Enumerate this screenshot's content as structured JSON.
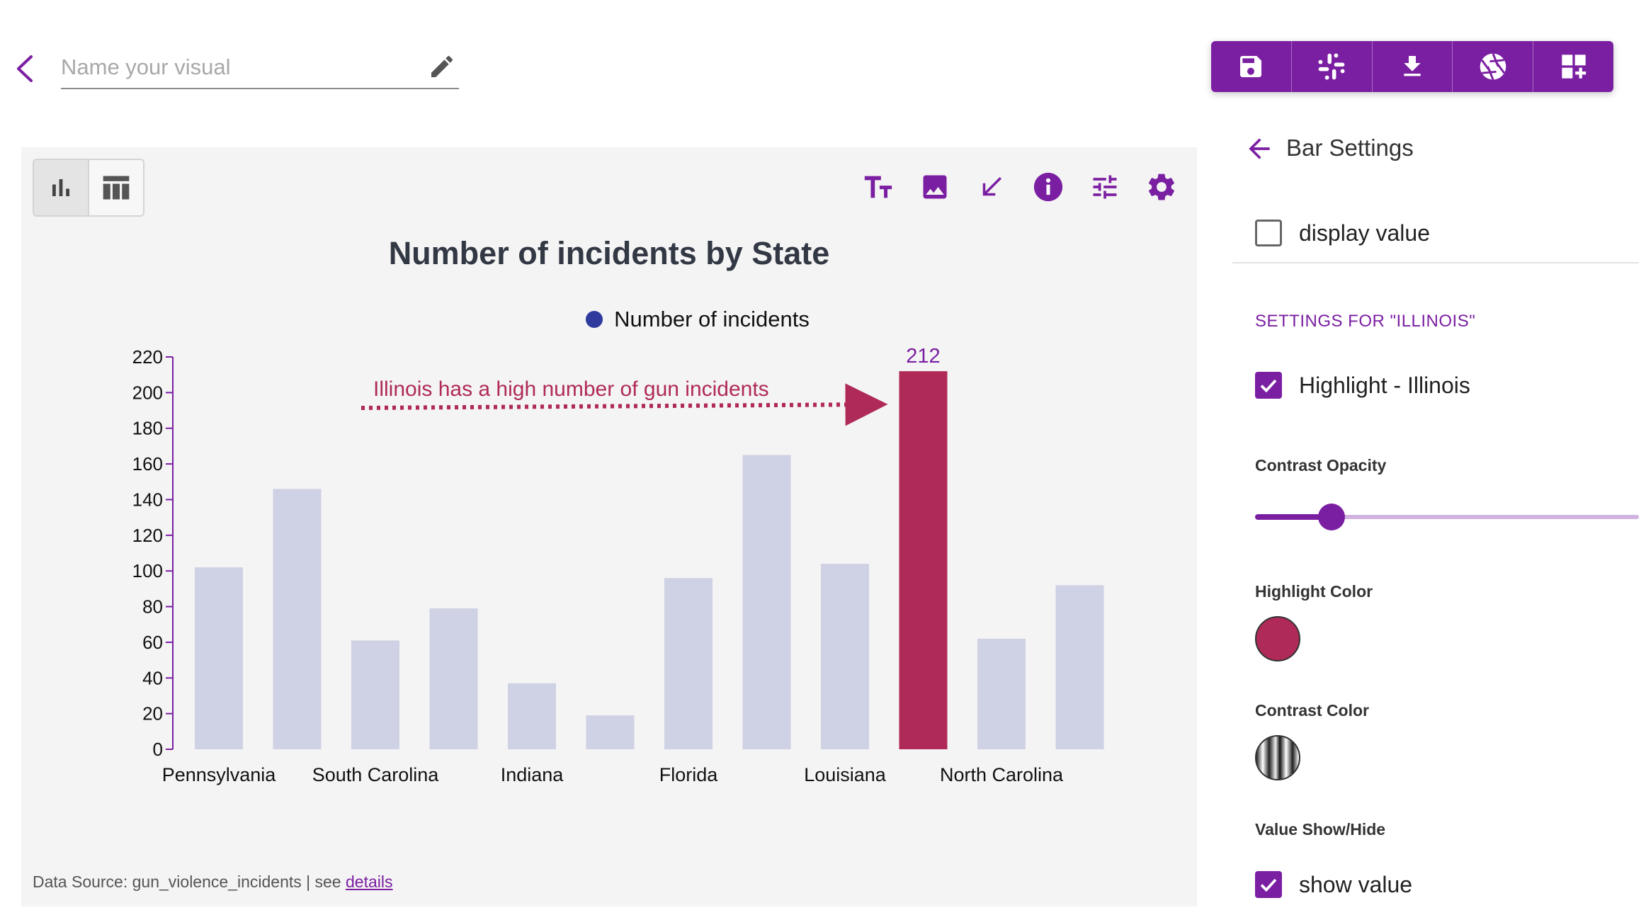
{
  "header": {
    "name_placeholder": "Name your visual",
    "name_value": ""
  },
  "toolbar": {
    "buttons": [
      "save-icon",
      "slack-icon",
      "download-icon",
      "aperture-icon",
      "add-dashboard-icon"
    ]
  },
  "chart_card": {
    "chart_tools": [
      "text-size-icon",
      "image-icon",
      "arrow-annotation-icon",
      "info-icon",
      "tune-icon",
      "gear-icon"
    ],
    "footer": {
      "source_text": "Data Source: gun_violence_incidents | see ",
      "link_text": "details"
    }
  },
  "colors": {
    "accent": "#7b1fa2",
    "highlight": "#b02a59",
    "contrast_bar": "#cfd1e4",
    "legend_dot": "#2e3a9e",
    "axis": "#7b1fa2"
  },
  "chart_data": {
    "type": "bar",
    "title": "Number of incidents by State",
    "series_name": "Number of incidents",
    "categories": [
      "Pennsylvania",
      "",
      "South Carolina",
      "",
      "Indiana",
      "",
      "Florida",
      "",
      "Louisiana",
      "",
      "North Carolina",
      ""
    ],
    "values": [
      102,
      146,
      61,
      79,
      37,
      19,
      96,
      165,
      104,
      212,
      62,
      92
    ],
    "highlight_index": 9,
    "highlight_value_label": "212",
    "annotation": "Illinois has a high number of gun incidents",
    "ylim": [
      0,
      220
    ],
    "yticks": [
      0,
      20,
      40,
      60,
      80,
      100,
      120,
      140,
      160,
      180,
      200,
      220
    ],
    "legend_position": "top-center",
    "grid": false
  },
  "panel": {
    "title": "Bar Settings",
    "display_value_label": "display value",
    "display_value_checked": false,
    "section_head": "SETTINGS FOR \"ILLINOIS\"",
    "highlight_label": "Highlight - Illinois",
    "highlight_checked": true,
    "contrast_opacity_label": "Contrast Opacity",
    "contrast_opacity_value": 0.2,
    "highlight_color_label": "Highlight Color",
    "contrast_color_label": "Contrast Color",
    "value_showhide_label": "Value Show/Hide",
    "show_value_label": "show value",
    "show_value_checked": true
  }
}
